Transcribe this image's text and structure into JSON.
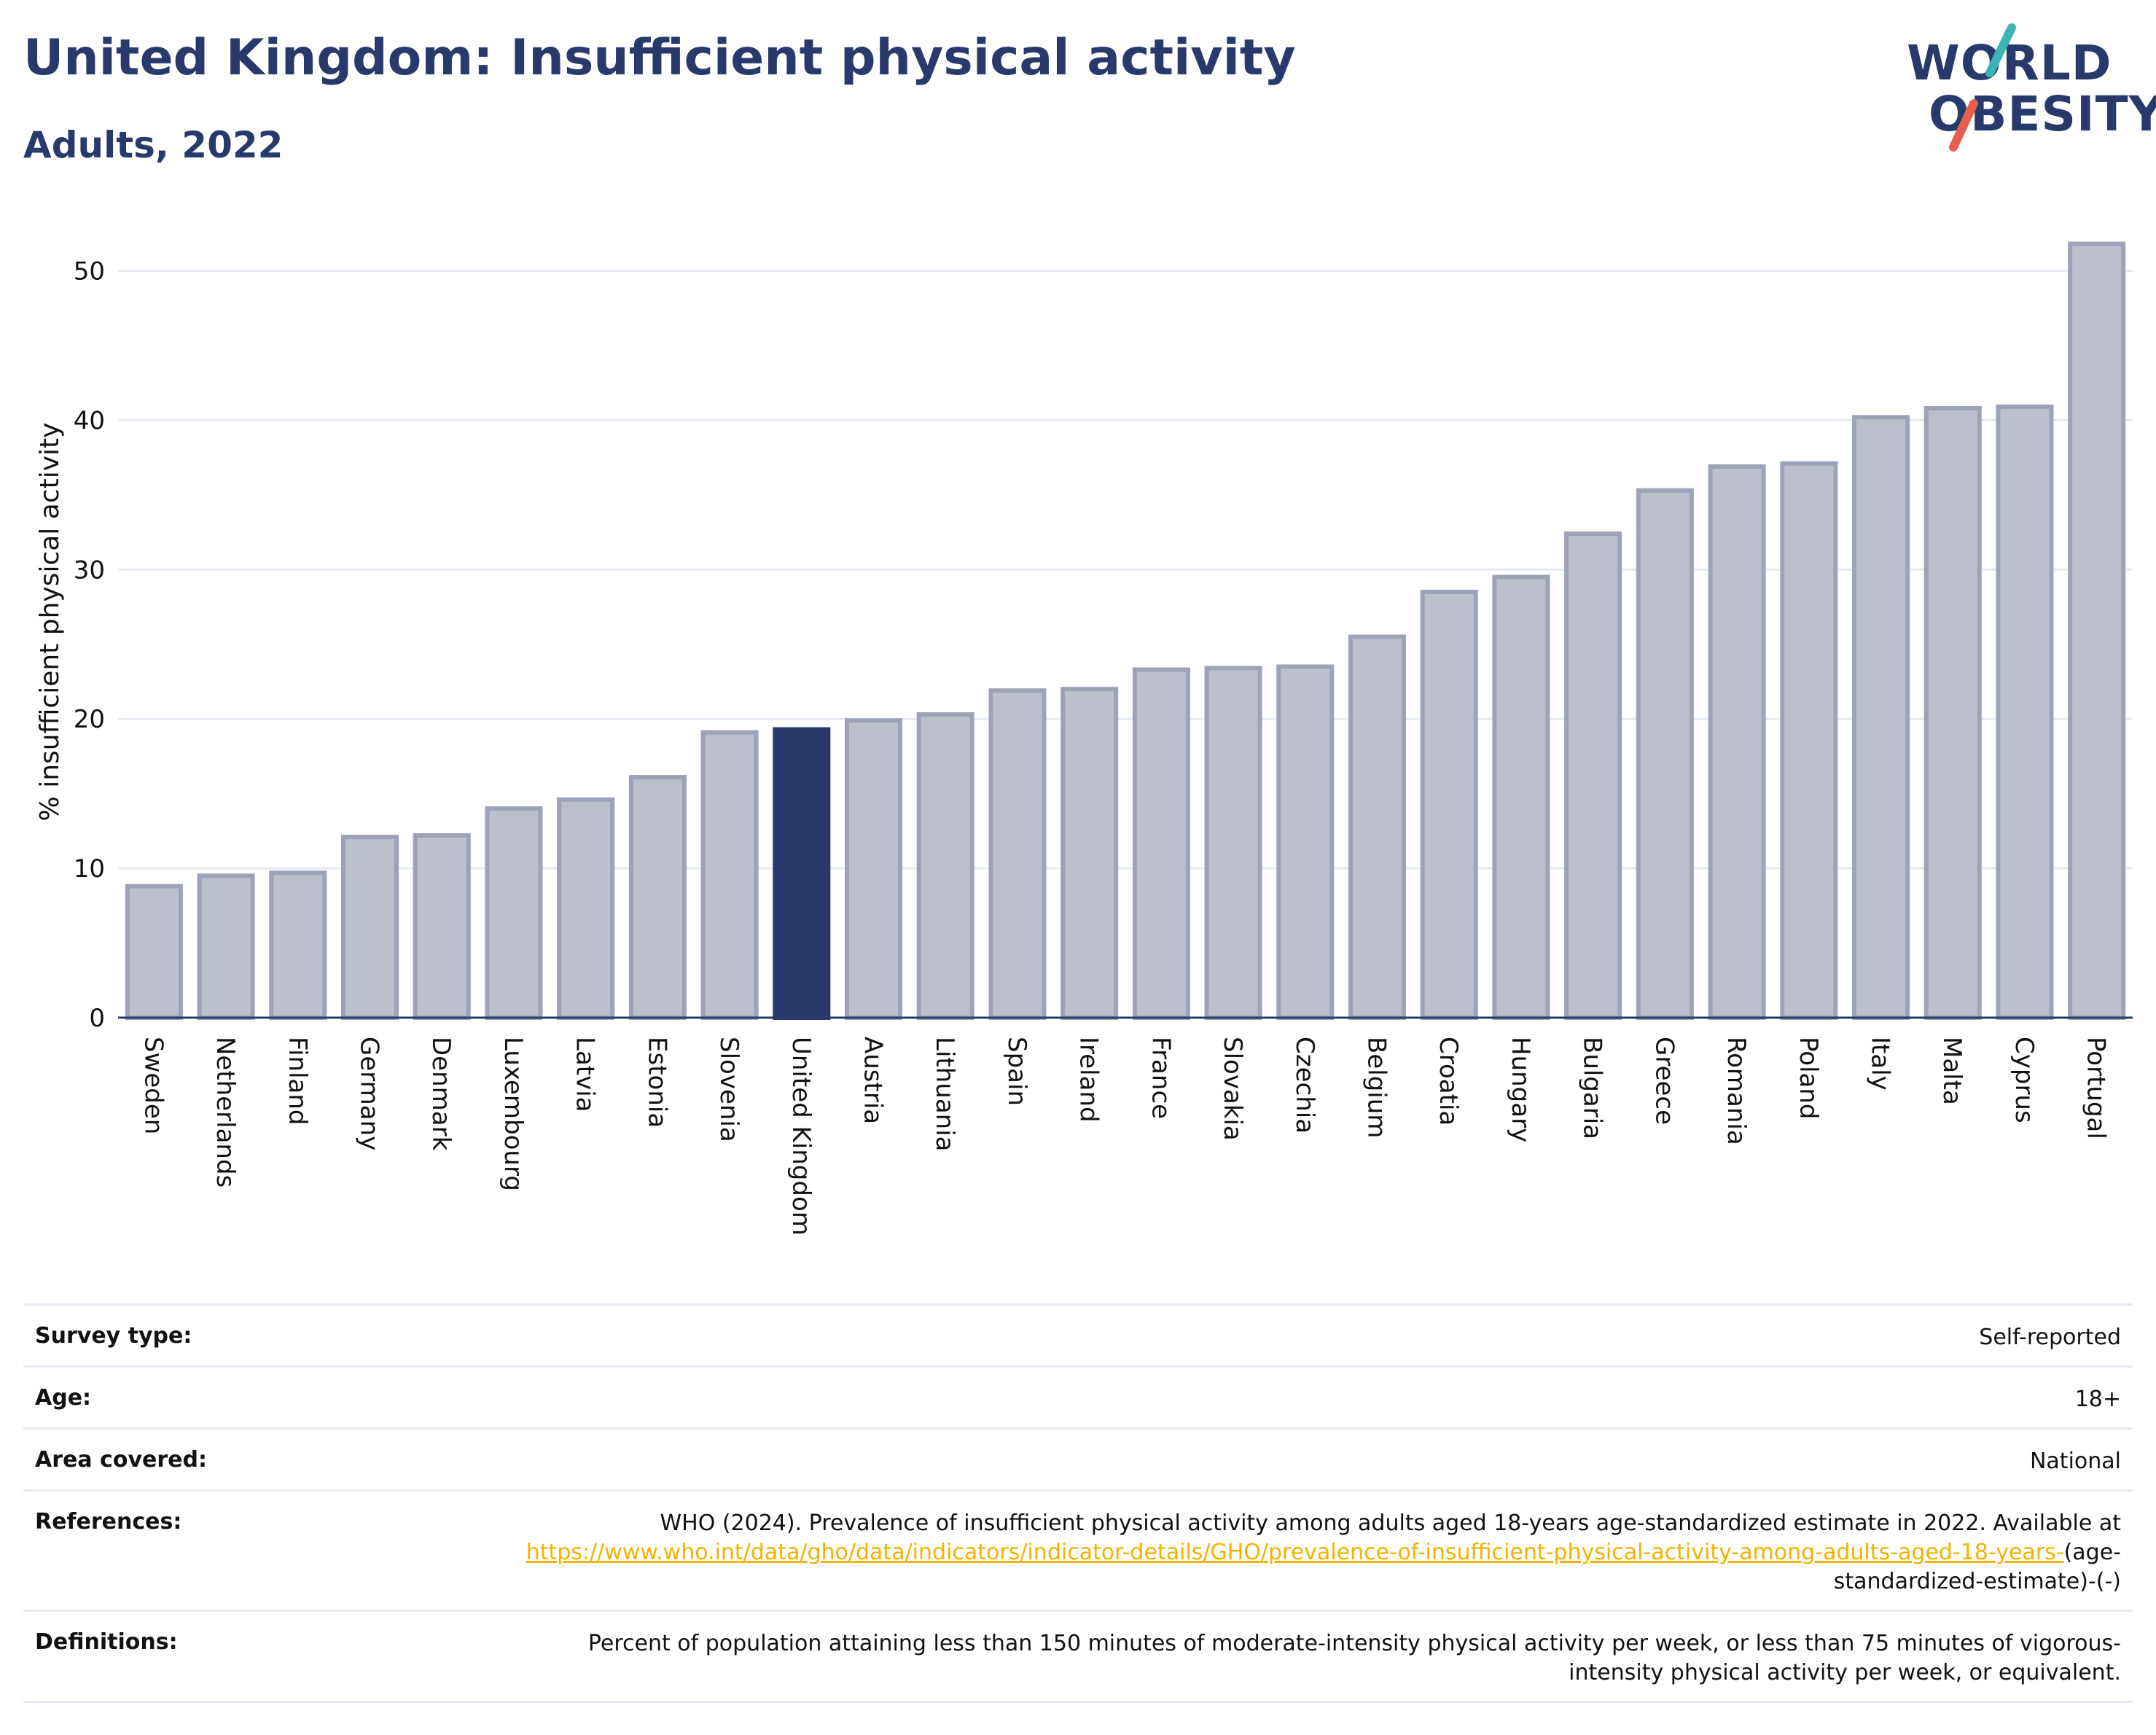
{
  "header": {
    "title": "United Kingdom: Insufficient physical activity",
    "subtitle": "Adults, 2022"
  },
  "logo": {
    "line1": "WORLD",
    "line2": "OBESITY",
    "accent_teal": "#3bb3b7",
    "accent_red": "#e8604c"
  },
  "colors": {
    "bar": "#bcc0ce",
    "bar_border": "#9ca2b8",
    "highlight": "#283a6b",
    "grid": "#e6e9f2",
    "link": "#f0b400"
  },
  "chart_data": {
    "type": "bar",
    "ylabel": "% insufficient physical activity",
    "ylim": [
      0,
      53
    ],
    "yticks": [
      0,
      10,
      20,
      30,
      40,
      50
    ],
    "grid": true,
    "highlight": "United Kingdom",
    "categories": [
      "Sweden",
      "Netherlands",
      "Finland",
      "Germany",
      "Denmark",
      "Luxembourg",
      "Latvia",
      "Estonia",
      "Slovenia",
      "United Kingdom",
      "Austria",
      "Lithuania",
      "Spain",
      "Ireland",
      "France",
      "Slovakia",
      "Czechia",
      "Belgium",
      "Croatia",
      "Hungary",
      "Bulgaria",
      "Greece",
      "Romania",
      "Poland",
      "Italy",
      "Malta",
      "Cyprus",
      "Portugal"
    ],
    "values": [
      8.8,
      9.5,
      9.7,
      12.1,
      12.2,
      14.0,
      14.6,
      16.1,
      19.1,
      19.3,
      19.9,
      20.3,
      21.9,
      22.0,
      23.3,
      23.4,
      23.5,
      25.5,
      28.5,
      29.5,
      32.4,
      35.3,
      36.9,
      37.1,
      40.2,
      40.8,
      40.9,
      51.8
    ]
  },
  "meta": {
    "survey_type_label": "Survey type:",
    "survey_type_value": "Self-reported",
    "age_label": "Age:",
    "age_value": "18+",
    "area_label": "Area covered:",
    "area_value": "National",
    "references_label": "References:",
    "references_text": "WHO (2024). Prevalence of insufficient physical activity among adults aged 18-years age-standardized estimate in 2022. Available at",
    "references_link": "https://www.who.int/data/gho/data/indicators/indicator-details/GHO/prevalence-of-insufficient-physical-activity-among-adults-aged-18-years-",
    "references_suffix": "(age-standardized-estimate)-(-)",
    "definitions_label": "Definitions:",
    "definitions_value": "Percent of population attaining less than 150 minutes of moderate-intensity physical activity per week, or less than 75 minutes of vigorous-intensity physical activity per week, or equivalent."
  }
}
